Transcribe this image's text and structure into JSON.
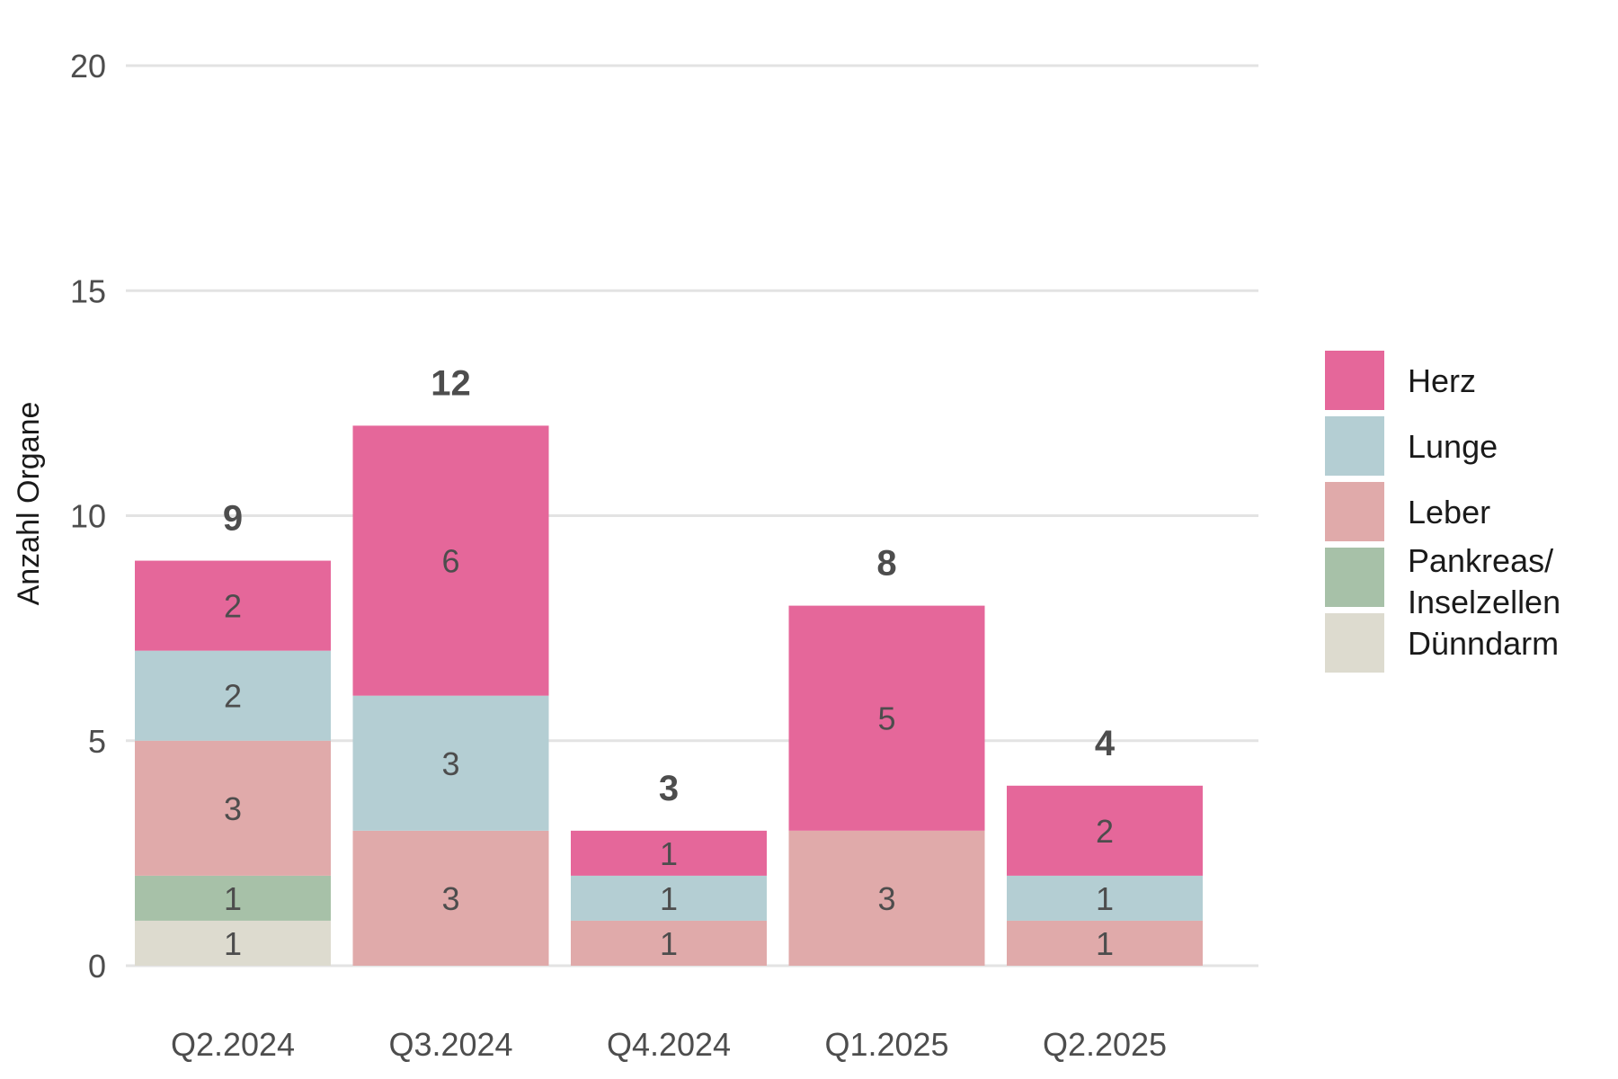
{
  "chart_data": {
    "type": "bar",
    "stacked": true,
    "categories": [
      "Q2.2024",
      "Q3.2024",
      "Q4.2024",
      "Q1.2025",
      "Q2.2025"
    ],
    "series": [
      {
        "name": "Dünndarm",
        "color": "#dddbcf",
        "values": [
          1,
          0,
          0,
          0,
          0
        ]
      },
      {
        "name": "Pankreas/\nInselzellen",
        "color": "#a7c1a8",
        "values": [
          1,
          0,
          0,
          0,
          0
        ]
      },
      {
        "name": "Leber",
        "color": "#e0aaaa",
        "values": [
          3,
          3,
          1,
          3,
          1
        ]
      },
      {
        "name": "Lunge",
        "color": "#b4ced3",
        "values": [
          2,
          3,
          1,
          0,
          1
        ]
      },
      {
        "name": "Herz",
        "color": "#e5679a",
        "values": [
          2,
          6,
          1,
          5,
          2
        ]
      }
    ],
    "totals": [
      9,
      12,
      3,
      8,
      4
    ],
    "title": "",
    "xlabel": "",
    "ylabel": "Anzahl Organe",
    "ylim": [
      0,
      20
    ],
    "yticks": [
      0,
      5,
      10,
      15,
      20
    ],
    "grid": "horizontal",
    "legend_position": "right",
    "legend_order": [
      "Herz",
      "Lunge",
      "Leber",
      "Pankreas/\nInselzellen",
      "Dünndarm"
    ]
  }
}
